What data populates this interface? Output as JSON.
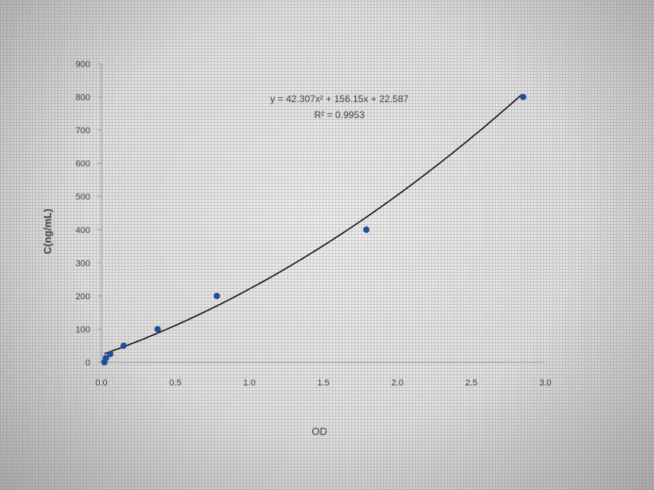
{
  "chart_data": {
    "type": "scatter",
    "xlabel": "OD",
    "ylabel": "C(ng/mL)",
    "xlim": [
      0,
      3.0
    ],
    "ylim": [
      0,
      900
    ],
    "xticks": [
      "0.0",
      "0.5",
      "1.0",
      "1.5",
      "2.0",
      "2.5",
      "3.0"
    ],
    "yticks": [
      "0",
      "100",
      "200",
      "300",
      "400",
      "500",
      "600",
      "700",
      "800",
      "900"
    ],
    "grid": false,
    "points": [
      {
        "x": 0.02,
        "y": 0
      },
      {
        "x": 0.03,
        "y": 12.5
      },
      {
        "x": 0.06,
        "y": 25
      },
      {
        "x": 0.15,
        "y": 50
      },
      {
        "x": 0.38,
        "y": 100
      },
      {
        "x": 0.78,
        "y": 200
      },
      {
        "x": 1.79,
        "y": 400
      },
      {
        "x": 2.85,
        "y": 800
      }
    ],
    "trendline": {
      "type": "polynomial",
      "coefficients": [
        42.307,
        156.15,
        22.587
      ]
    },
    "equation": "y = 42.307x² + 156.15x + 22.587",
    "r_squared": "R² = 0.9953",
    "point_color": "#1f4e9a",
    "line_color": "#111111"
  }
}
